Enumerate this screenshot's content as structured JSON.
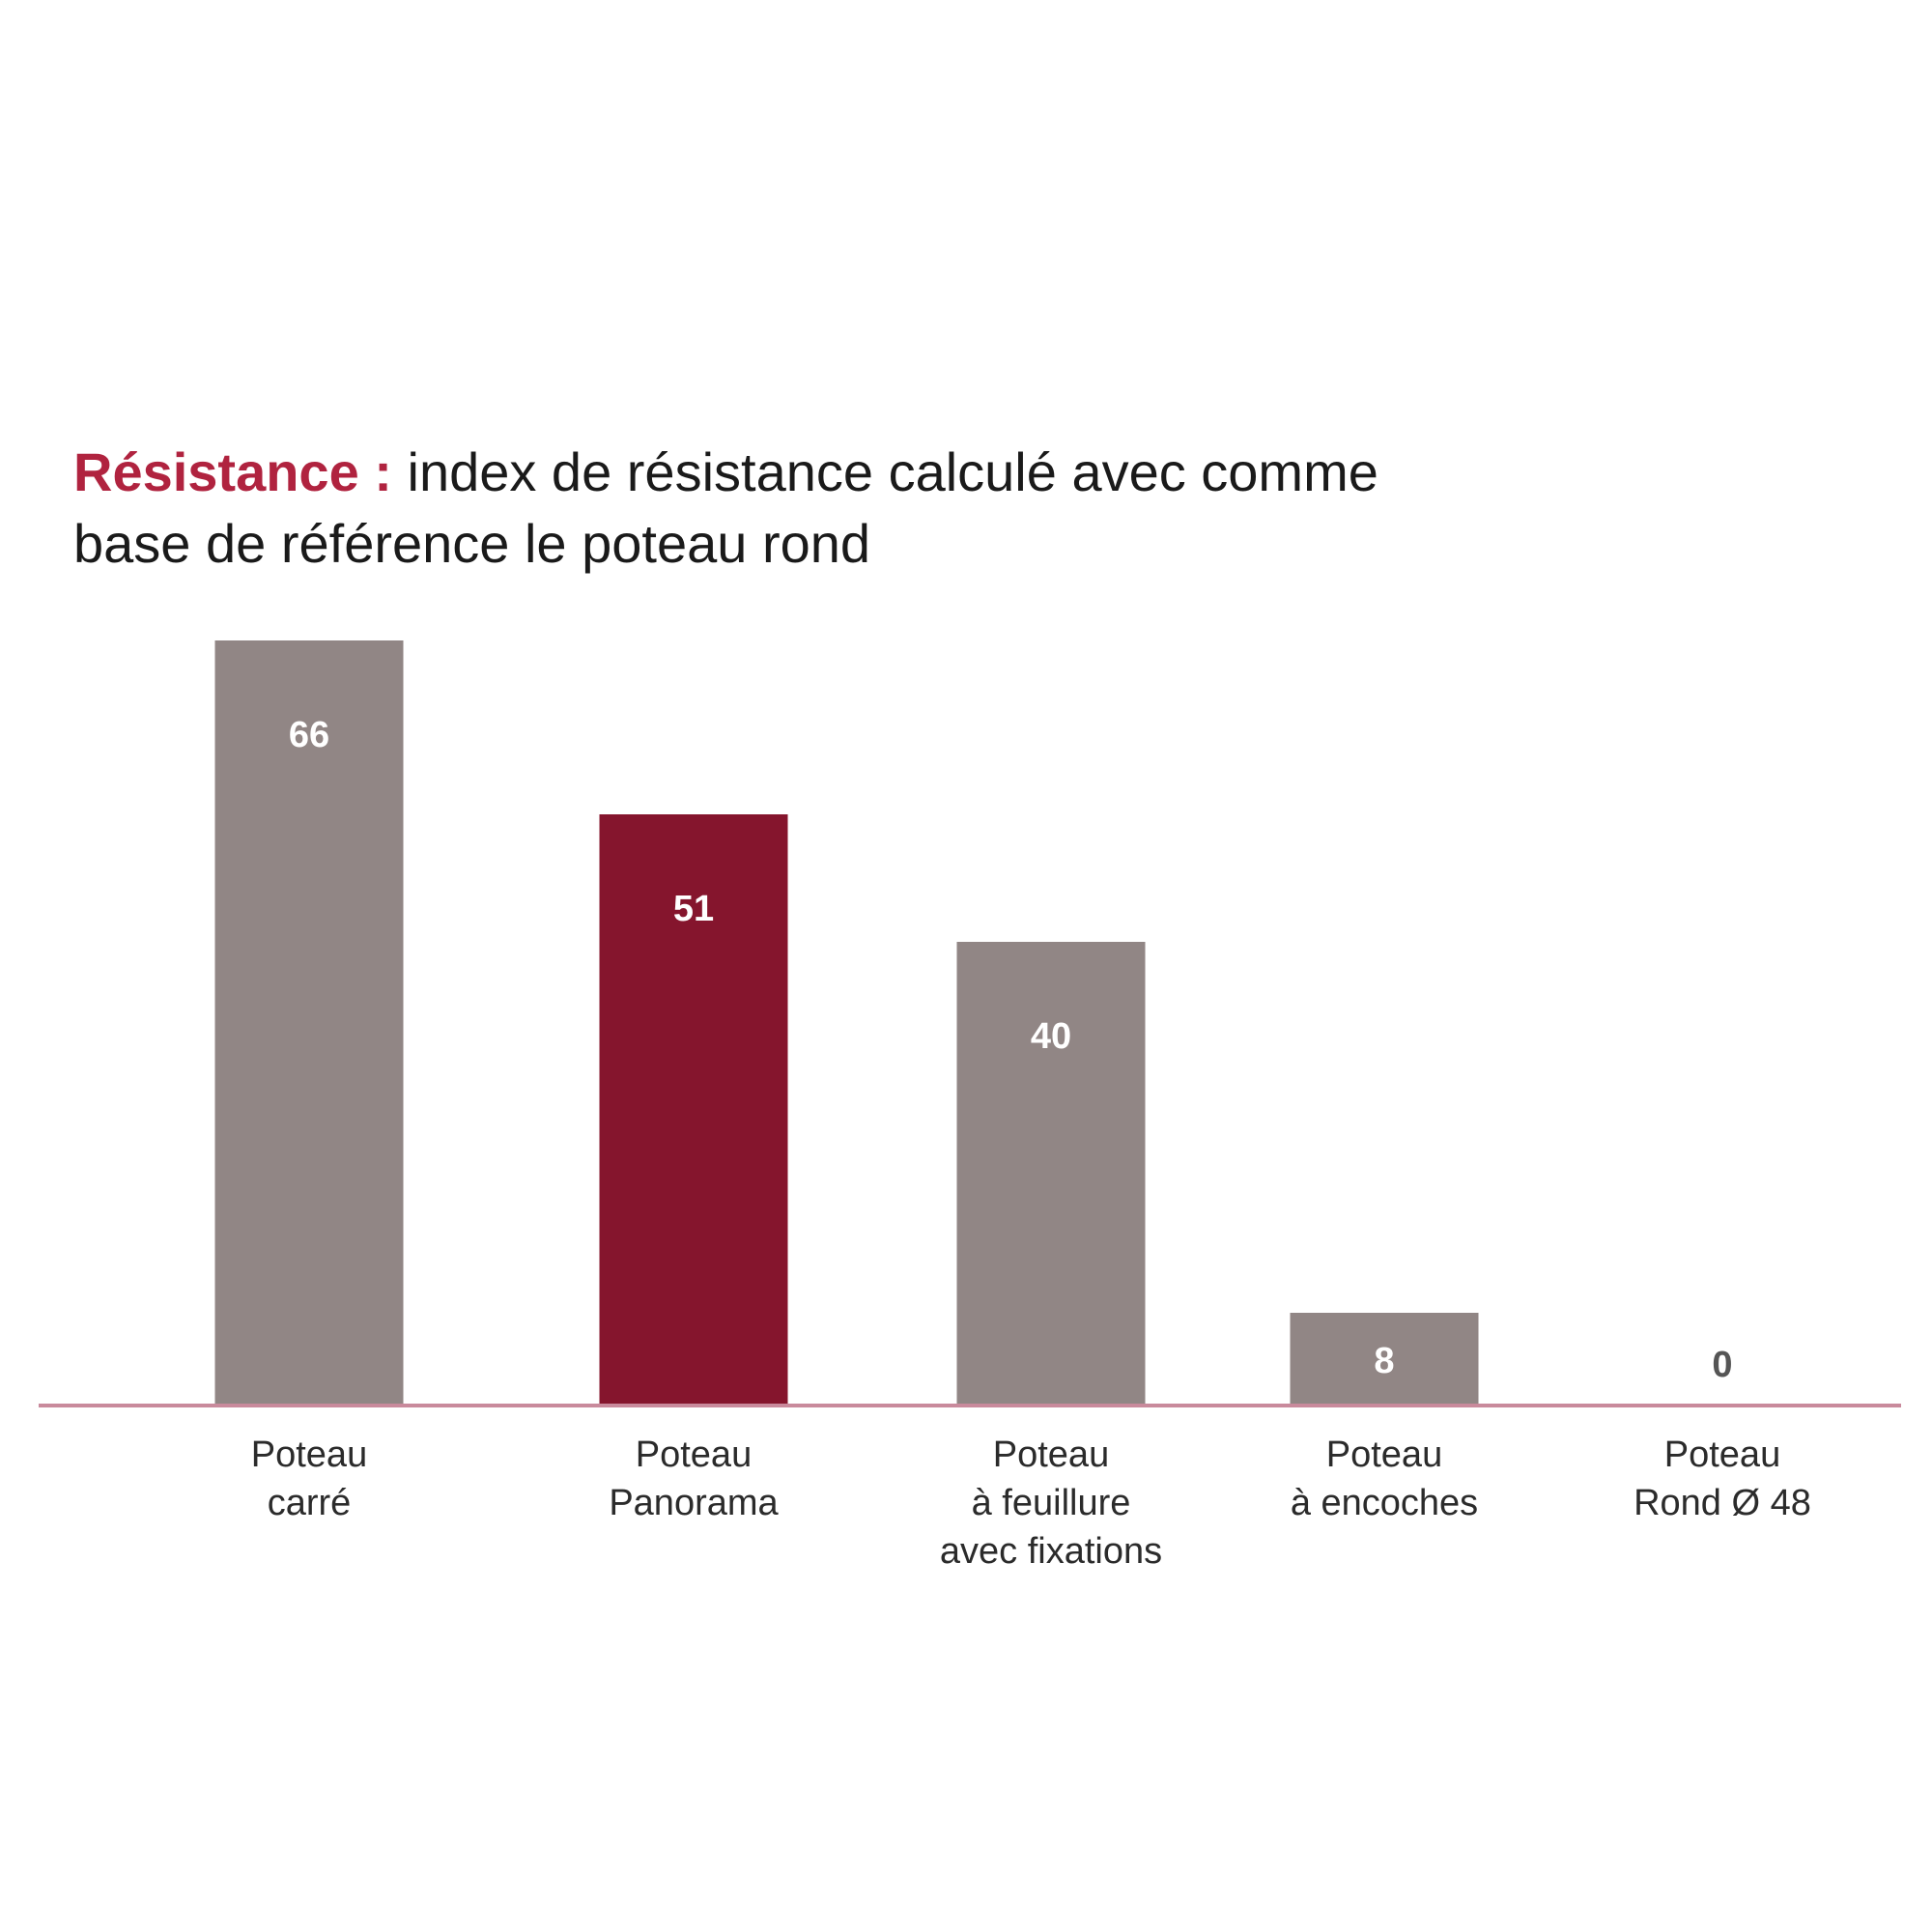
{
  "chart_data": {
    "type": "bar",
    "title_accent": "Résistance :",
    "title_rest": " index de résistance calculé avec comme base de référence le poteau rond",
    "categories": [
      [
        "Poteau",
        "carré"
      ],
      [
        "Poteau",
        "Panorama"
      ],
      [
        "Poteau",
        "à feuillure",
        "avec fixations"
      ],
      [
        "Poteau",
        "à encoches"
      ],
      [
        "Poteau",
        "Rond Ø 48"
      ]
    ],
    "values": [
      66,
      51,
      40,
      8,
      0
    ],
    "highlight_index": 1,
    "ylim": [
      0,
      66
    ],
    "grid": false,
    "legend": "none",
    "colors": {
      "bar": "#918685",
      "highlight": "#85152d",
      "baseline": "#c98a9c",
      "label_inside": "#ffffff",
      "label_outside": "#555555",
      "title_accent": "#b0233f"
    }
  }
}
